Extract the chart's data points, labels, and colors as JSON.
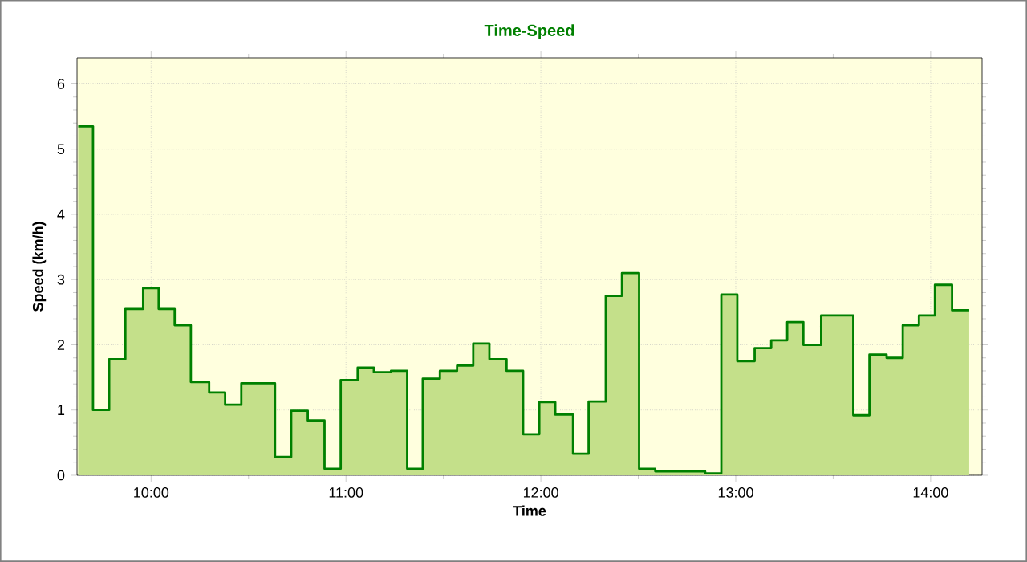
{
  "chart_data": {
    "type": "step",
    "title": "Time-Speed",
    "xlabel": "Time",
    "ylabel": "Speed (km/h)",
    "x": [
      9.626,
      9.702,
      9.785,
      9.868,
      9.959,
      10.039,
      10.121,
      10.204,
      10.298,
      10.38,
      10.463,
      10.636,
      10.719,
      10.804,
      10.89,
      10.973,
      11.06,
      11.143,
      11.231,
      11.314,
      11.394,
      11.482,
      11.57,
      11.653,
      11.736,
      11.824,
      11.909,
      11.992,
      12.074,
      12.165,
      12.245,
      12.333,
      12.416,
      12.504,
      12.587,
      12.843,
      12.926,
      13.008,
      13.097,
      13.182,
      13.264,
      13.347,
      13.438,
      13.603,
      13.686,
      13.774,
      13.857,
      13.94,
      14.022,
      14.11,
      14.198
    ],
    "series": [
      {
        "type": "area",
        "color": "#c4e08a",
        "values": [
          5.35,
          1.0,
          1.78,
          2.55,
          2.87,
          2.55,
          2.3,
          1.43,
          1.27,
          1.08,
          1.41,
          0.28,
          0.99,
          0.84,
          0.1,
          1.46,
          1.65,
          1.58,
          1.6,
          0.1,
          1.48,
          1.6,
          1.68,
          2.02,
          1.78,
          1.6,
          0.63,
          1.12,
          0.93,
          0.33,
          1.13,
          2.75,
          3.1,
          0.1,
          0.06,
          0.03,
          2.77,
          1.75,
          1.95,
          2.07,
          2.35,
          2.0,
          2.45,
          0.92,
          1.85,
          1.8,
          2.3,
          2.45,
          2.92,
          2.53,
          2.53
        ]
      },
      {
        "type": "step",
        "color": "#008000",
        "values": [
          5.35,
          1.0,
          1.78,
          2.55,
          2.87,
          2.55,
          2.3,
          1.43,
          1.27,
          1.08,
          1.41,
          0.28,
          0.99,
          0.84,
          0.1,
          1.46,
          1.65,
          1.58,
          1.6,
          0.1,
          1.48,
          1.6,
          1.68,
          2.02,
          1.78,
          1.6,
          0.63,
          1.12,
          0.93,
          0.33,
          1.13,
          2.75,
          3.1,
          0.1,
          0.06,
          0.03,
          2.77,
          1.75,
          1.95,
          2.07,
          2.35,
          2.0,
          2.45,
          0.92,
          1.85,
          1.8,
          2.3,
          2.45,
          2.92,
          2.53,
          2.53
        ]
      }
    ],
    "xlim": [
      9.62,
      14.264
    ],
    "ylim": [
      0,
      6.4
    ],
    "xticks": [
      {
        "value": 10,
        "label": "10:00"
      },
      {
        "value": 11,
        "label": "11:00"
      },
      {
        "value": 12,
        "label": "12:00"
      },
      {
        "value": 13,
        "label": "13:00"
      },
      {
        "value": 14,
        "label": "14:00"
      }
    ],
    "yticks": [
      0,
      1,
      2,
      3,
      4,
      5,
      6
    ],
    "grid": true
  }
}
